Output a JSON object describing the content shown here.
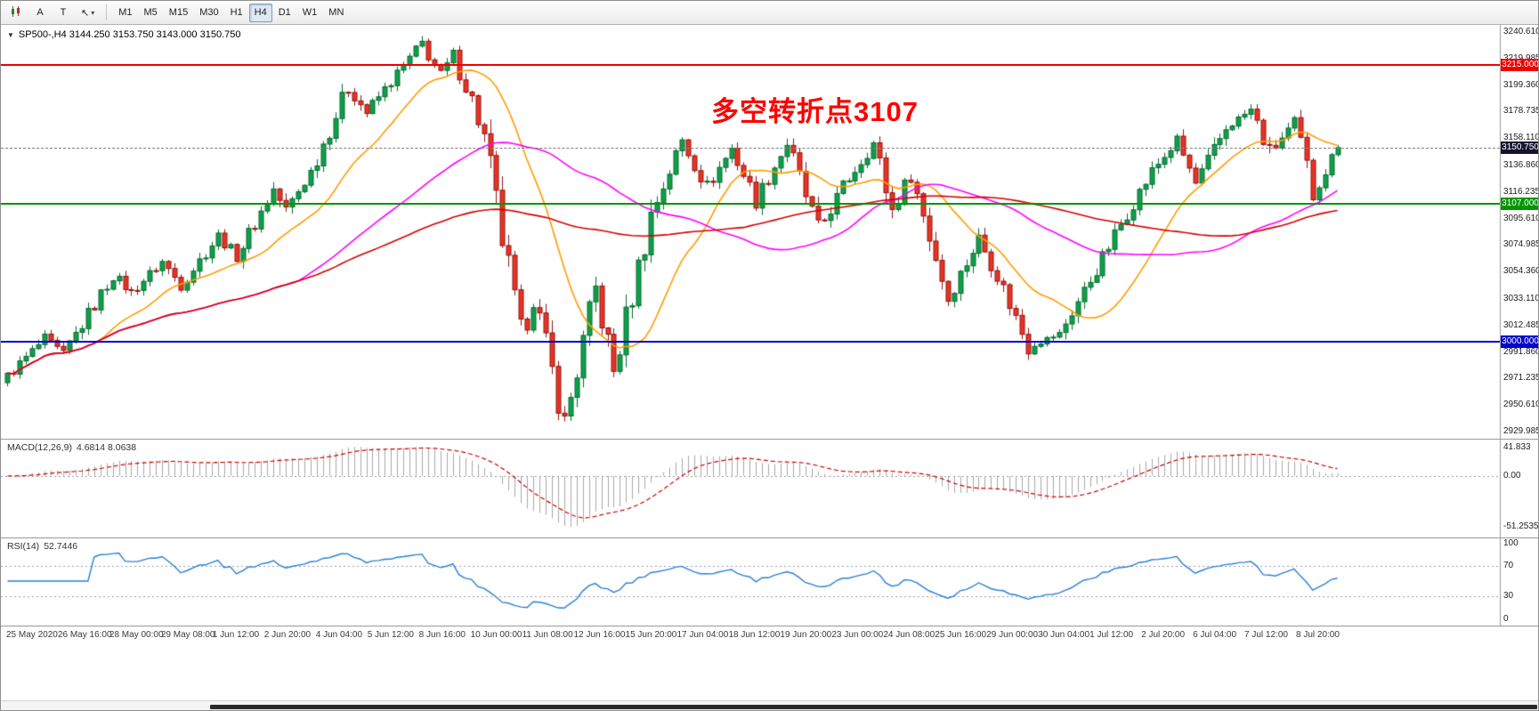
{
  "toolbar": {
    "btn_a": "A",
    "btn_t": "T",
    "cursor_glyph": "↖",
    "chevron": "▾",
    "timeframes": [
      "M1",
      "M5",
      "M15",
      "M30",
      "H1",
      "H4",
      "D1",
      "W1",
      "MN"
    ],
    "active_timeframe": "H4"
  },
  "chart": {
    "collapse_triangle": "▼",
    "symbol_ohlc": "SP500-,H4  3144.250 3153.750 3143.000 3150.750",
    "annotation": {
      "text": "多空转折点3107",
      "color": "#ff0000"
    },
    "y_axis_labels": [
      "3240.610",
      "3219.985",
      "3199.360",
      "3178.735",
      "3158.110",
      "3136.860",
      "3116.235",
      "3095.610",
      "3074.985",
      "3054.360",
      "3033.110",
      "3012.485",
      "2991.860",
      "2971.235",
      "2950.610",
      "2929.985"
    ],
    "x_axis_labels": [
      "25 May 2020",
      "26 May 16:00",
      "28 May 00:00",
      "29 May 08:00",
      "1 Jun 12:00",
      "2 Jun 20:00",
      "4 Jun 04:00",
      "5 Jun 12:00",
      "8 Jun 16:00",
      "10 Jun 00:00",
      "11 Jun 08:00",
      "12 Jun 16:00",
      "15 Jun 20:00",
      "17 Jun 04:00",
      "18 Jun 12:00",
      "19 Jun 20:00",
      "23 Jun 00:00",
      "24 Jun 08:00",
      "25 Jun 16:00",
      "29 Jun 00:00",
      "30 Jun 04:00",
      "1 Jul 12:00",
      "2 Jul 20:00",
      "6 Jul 04:00",
      "7 Jul 12:00",
      "8 Jul 20:00"
    ],
    "hlines": [
      {
        "price": 3215.0,
        "label": "3215.000",
        "color": "#ee0000"
      },
      {
        "price": 3107.0,
        "label": "3107.000",
        "color": "#009600"
      },
      {
        "price": 3000.0,
        "label": "3000.000",
        "color": "#0000cc"
      }
    ],
    "current_price": {
      "price": 3150.75,
      "label": "3150.750",
      "bg": "#14142e"
    }
  },
  "macd": {
    "title": "MACD(12,26,9)",
    "values": "4.6814 8.0638",
    "y_labels": [
      "41.833",
      "0.00",
      "-51.2535"
    ]
  },
  "rsi": {
    "title": "RSI(14)",
    "value": "52.7446",
    "y_labels": [
      "100",
      "70",
      "30",
      "0"
    ],
    "levels": [
      70,
      30
    ]
  },
  "chart_data": {
    "type": "candlestick",
    "symbol": "SP500-",
    "timeframe": "H4",
    "last_ohlc": {
      "open": 3144.25,
      "high": 3153.75,
      "low": 3143.0,
      "close": 3150.75
    },
    "price_axis": {
      "top": 3240.61,
      "bottom": 2929.985
    },
    "segments": [
      [
        2968,
        3002,
        7
      ],
      [
        3002,
        2990,
        3
      ],
      [
        2990,
        3052,
        8
      ],
      [
        3052,
        3038,
        3
      ],
      [
        3038,
        3062,
        5
      ],
      [
        3062,
        3044,
        3
      ],
      [
        3044,
        3082,
        6
      ],
      [
        3082,
        3066,
        3
      ],
      [
        3066,
        3118,
        6
      ],
      [
        3118,
        3102,
        2
      ],
      [
        3102,
        3132,
        4
      ],
      [
        3132,
        3198,
        6
      ],
      [
        3198,
        3178,
        3
      ],
      [
        3178,
        3202,
        4
      ],
      [
        3202,
        3232,
        5
      ],
      [
        3232,
        3206,
        3
      ],
      [
        3206,
        3222,
        2
      ],
      [
        3222,
        3188,
        3
      ],
      [
        3188,
        3158,
        2
      ],
      [
        3158,
        3002,
        6
      ],
      [
        3002,
        3036,
        2
      ],
      [
        3036,
        2936,
        5
      ],
      [
        2936,
        3040,
        5
      ],
      [
        3040,
        2976,
        3
      ],
      [
        2976,
        3098,
        6
      ],
      [
        3098,
        3156,
        5
      ],
      [
        3156,
        3120,
        4
      ],
      [
        3120,
        3150,
        4
      ],
      [
        3150,
        3110,
        4
      ],
      [
        3110,
        3154,
        5
      ],
      [
        3154,
        3086,
        5
      ],
      [
        3086,
        3120,
        4
      ],
      [
        3120,
        3154,
        5
      ],
      [
        3154,
        3102,
        3
      ],
      [
        3102,
        3130,
        3
      ],
      [
        3130,
        3034,
        6
      ],
      [
        3034,
        3080,
        5
      ],
      [
        3080,
        3052,
        3
      ],
      [
        3052,
        2996,
        5
      ],
      [
        2996,
        3006,
        5
      ],
      [
        3006,
        3056,
        6
      ],
      [
        3056,
        3100,
        5
      ],
      [
        3100,
        3132,
        4
      ],
      [
        3132,
        3156,
        4
      ],
      [
        3156,
        3122,
        3
      ],
      [
        3122,
        3166,
        5
      ],
      [
        3166,
        3180,
        4
      ],
      [
        3180,
        3146,
        3
      ],
      [
        3146,
        3170,
        4
      ],
      [
        3170,
        3116,
        3
      ],
      [
        3116,
        3150.75,
        4
      ]
    ],
    "ma": [
      {
        "period": 16,
        "color": "#ff9c00"
      },
      {
        "period": 48,
        "color": "#ff00ff"
      },
      {
        "period": 120,
        "color": "#d40000"
      }
    ],
    "candle_up": "#0fa04a",
    "candle_up_border": "#066a2e",
    "candle_down": "#ea3323",
    "candle_down_border": "#8f1410",
    "macd_params": [
      12,
      26,
      9
    ],
    "macd_hist_color": "#a9a9a9",
    "macd_signal_color": "#cc0000",
    "rsi_period": 14,
    "rsi_color": "#2a7fd4"
  }
}
